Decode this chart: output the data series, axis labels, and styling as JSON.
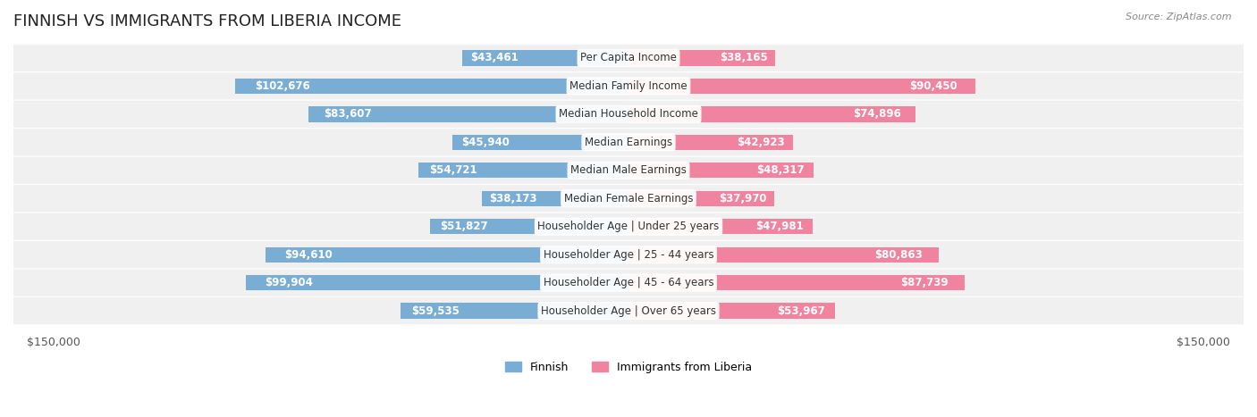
{
  "title": "FINNISH VS IMMIGRANTS FROM LIBERIA INCOME",
  "source": "Source: ZipAtlas.com",
  "categories": [
    "Per Capita Income",
    "Median Family Income",
    "Median Household Income",
    "Median Earnings",
    "Median Male Earnings",
    "Median Female Earnings",
    "Householder Age | Under 25 years",
    "Householder Age | 25 - 44 years",
    "Householder Age | 45 - 64 years",
    "Householder Age | Over 65 years"
  ],
  "finnish_values": [
    43461,
    102676,
    83607,
    45940,
    54721,
    38173,
    51827,
    94610,
    99904,
    59535
  ],
  "immigrant_values": [
    38165,
    90450,
    74896,
    42923,
    48317,
    37970,
    47981,
    80863,
    87739,
    53967
  ],
  "finnish_labels": [
    "$43,461",
    "$102,676",
    "$83,607",
    "$45,940",
    "$54,721",
    "$38,173",
    "$51,827",
    "$94,610",
    "$99,904",
    "$59,535"
  ],
  "immigrant_labels": [
    "$38,165",
    "$90,450",
    "$74,896",
    "$42,923",
    "$48,317",
    "$37,970",
    "$47,981",
    "$80,863",
    "$87,739",
    "$53,967"
  ],
  "finnish_color": "#7aadd4",
  "immigrant_color": "#f084a0",
  "finnish_color_dark": "#5b9ec9",
  "immigrant_color_dark": "#e8607a",
  "row_bg_color": "#f0f0f0",
  "max_value": 150000,
  "xlabel_left": "$150,000",
  "xlabel_right": "$150,000",
  "legend_finnish": "Finnish",
  "legend_immigrant": "Immigrants from Liberia",
  "title_fontsize": 13,
  "label_fontsize": 8.5,
  "category_fontsize": 8.5
}
